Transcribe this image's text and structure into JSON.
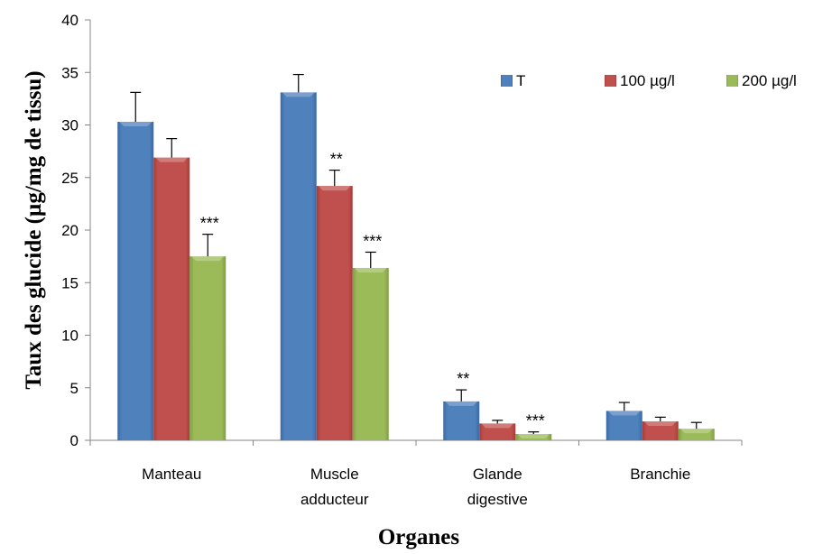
{
  "chart_data": {
    "type": "bar",
    "categories": [
      [
        "Manteau"
      ],
      [
        "Muscle",
        "adducteur"
      ],
      [
        "Glande",
        "digestive"
      ],
      [
        "Branchie"
      ]
    ],
    "series": [
      {
        "name": "T",
        "color": "#4f81bd",
        "values": [
          30.3,
          33.1,
          3.7,
          2.8
        ],
        "errors": [
          2.8,
          1.7,
          1.1,
          0.8
        ]
      },
      {
        "name": "100 µg/l",
        "color": "#c0504d",
        "values": [
          26.9,
          24.2,
          1.6,
          1.8
        ],
        "errors": [
          1.8,
          1.5,
          0.3,
          0.4
        ]
      },
      {
        "name": "200 µg/l",
        "color": "#9bbb59",
        "values": [
          17.5,
          16.4,
          0.6,
          1.1
        ],
        "errors": [
          2.1,
          1.5,
          0.2,
          0.6
        ]
      }
    ],
    "annotations": [
      {
        "series": 2,
        "category": 0,
        "text": "***"
      },
      {
        "series": 1,
        "category": 1,
        "text": "**"
      },
      {
        "series": 2,
        "category": 1,
        "text": "***"
      },
      {
        "series": 0,
        "category": 2,
        "text": "**"
      },
      {
        "series": 2,
        "category": 2,
        "text": "***"
      }
    ],
    "title": "",
    "xlabel": "Organes",
    "ylabel": "Taux des glucide (µg/mg de tissu)",
    "ylim": [
      0,
      40
    ],
    "yticks": [
      0,
      5,
      10,
      15,
      20,
      25,
      30,
      35,
      40
    ],
    "grid": false,
    "legend_position": "top-right"
  }
}
